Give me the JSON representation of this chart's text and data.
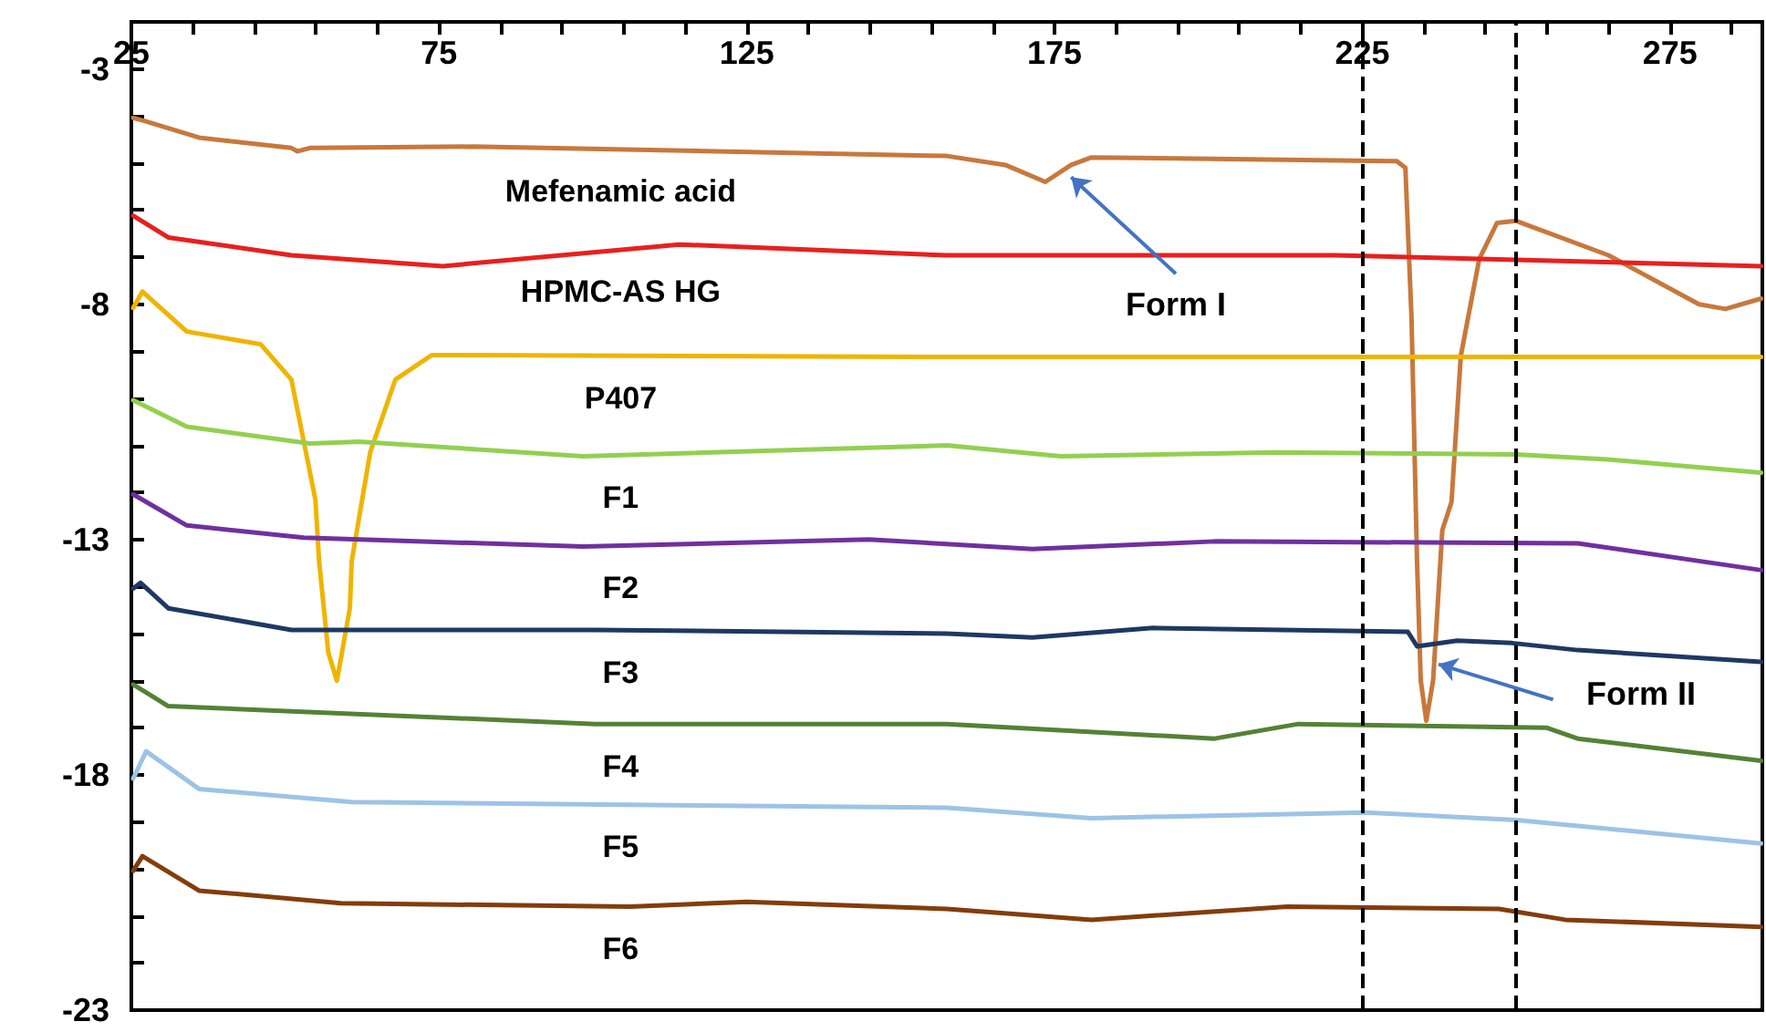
{
  "chart_data": {
    "type": "line",
    "marker": "none",
    "grid": false,
    "xlim": [
      25,
      290
    ],
    "xticks": [
      25,
      {
        "value": 35,
        "label": null
      },
      {
        "value": 45,
        "label": null
      },
      {
        "value": 55,
        "label": null
      },
      {
        "value": 65,
        "label": null
      },
      75,
      {
        "value": 85,
        "label": null
      },
      {
        "value": 95,
        "label": null
      },
      {
        "value": 105,
        "label": null
      },
      {
        "value": 115,
        "label": null
      },
      125,
      {
        "value": 135,
        "label": null
      },
      {
        "value": 145,
        "label": null
      },
      {
        "value": 155,
        "label": null
      },
      {
        "value": 165,
        "label": null
      },
      175,
      {
        "value": 185,
        "label": null
      },
      {
        "value": 195,
        "label": null
      },
      {
        "value": 205,
        "label": null
      },
      {
        "value": 215,
        "label": null
      },
      225,
      {
        "value": 235,
        "label": null
      },
      {
        "value": 245,
        "label": null
      },
      {
        "value": 255,
        "label": null
      },
      {
        "value": 265,
        "label": null
      },
      275,
      {
        "value": 285,
        "label": null
      }
    ],
    "ylim": [
      -23,
      -2
    ],
    "yticks": [
      -23,
      {
        "value": -22,
        "label": null
      },
      {
        "value": -21,
        "label": null
      },
      {
        "value": -20,
        "label": null
      },
      {
        "value": -19,
        "label": null
      },
      -18,
      {
        "value": -17,
        "label": null
      },
      {
        "value": -16,
        "label": null
      },
      {
        "value": -15,
        "label": null
      },
      {
        "value": -14,
        "label": null
      },
      -13,
      {
        "value": -12,
        "label": null
      },
      {
        "value": -11,
        "label": null
      },
      {
        "value": -10,
        "label": null
      },
      {
        "value": -9,
        "label": null
      },
      -8,
      {
        "value": -7,
        "label": null
      },
      {
        "value": -6,
        "label": null
      },
      {
        "value": -5,
        "label": null
      },
      {
        "value": -4,
        "label": null
      },
      -3
    ],
    "ref_lines": [
      {
        "axis": "x",
        "value": 225,
        "color": "#000000",
        "line_style": "dashed"
      },
      {
        "axis": "x",
        "value": 250,
        "color": "#000000",
        "line_style": "dashed"
      }
    ],
    "annotations": [
      {
        "text": "Form I",
        "x": 177.7,
        "y": -5.3
      },
      {
        "text": "Form II",
        "x": 237.4,
        "y": -15.65
      }
    ],
    "series": [
      {
        "name": "Mefenamic acid",
        "color": "#c8783c",
        "x": [
          25.3,
          27,
          36,
          51,
          52,
          54,
          80.6,
          120,
          157.5,
          167,
          173.5,
          177.7,
          181,
          230.6,
          232,
          233,
          233.9,
          234.5,
          235.4,
          236.5,
          238,
          239.5,
          241,
          244,
          246.9,
          250,
          265,
          279.7,
          284,
          289.8
        ],
        "values": [
          -4.04,
          -4.1,
          -4.46,
          -4.68,
          -4.75,
          -4.68,
          -4.65,
          -4.75,
          -4.85,
          -5.04,
          -5.4,
          -5.04,
          -4.88,
          -4.96,
          -5.1,
          -8.3,
          -13.5,
          -16.0,
          -16.85,
          -16.0,
          -12.8,
          -12.2,
          -9.1,
          -7.04,
          -6.27,
          -6.23,
          -6.96,
          -8.0,
          -8.1,
          -7.88
        ]
      },
      {
        "name": "HPMC-AS HG",
        "color": "#e8201e",
        "x": [
          25.3,
          31,
          51,
          75.6,
          114,
          157.5,
          220.6,
          289.8
        ],
        "values": [
          -6.12,
          -6.58,
          -6.96,
          -7.19,
          -6.73,
          -6.96,
          -6.96,
          -7.19
        ]
      },
      {
        "name": "P407",
        "color": "#f0b400",
        "x": [
          25.3,
          26.8,
          34,
          46,
          51,
          54.9,
          55.5,
          57,
          58.4,
          60.5,
          60.8,
          63.8,
          67.9,
          73.8,
          157.5,
          289.8
        ],
        "values": [
          -8.08,
          -7.73,
          -8.58,
          -8.85,
          -9.6,
          -12.15,
          -13.46,
          -15.4,
          -16.0,
          -14.46,
          -13.46,
          -11.15,
          -9.6,
          -9.08,
          -9.12,
          -9.12
        ]
      },
      {
        "name": "F1",
        "color": "#92d050",
        "x": [
          25.3,
          34,
          54,
          62,
          98.4,
          157.5,
          176,
          210.8,
          250,
          265,
          289.8
        ],
        "values": [
          -10.04,
          -10.6,
          -10.96,
          -10.92,
          -11.23,
          -11.0,
          -11.23,
          -11.15,
          -11.19,
          -11.3,
          -11.58
        ]
      },
      {
        "name": "F2",
        "color": "#7030a0",
        "x": [
          25.3,
          34,
          53,
          98.4,
          144.8,
          171.4,
          201,
          260,
          289.8
        ],
        "values": [
          -12.04,
          -12.7,
          -12.96,
          -13.15,
          -13.0,
          -13.2,
          -13.04,
          -13.08,
          -13.65
        ]
      },
      {
        "name": "F3",
        "color": "#1f3864",
        "x": [
          25.3,
          26.5,
          31,
          51,
          100.4,
          157.5,
          171.4,
          191,
          232.4,
          233.9,
          240.4,
          249.3,
          260,
          289.8
        ],
        "values": [
          -14.04,
          -13.92,
          -14.46,
          -14.92,
          -14.92,
          -15.0,
          -15.08,
          -14.88,
          -14.96,
          -15.27,
          -15.15,
          -15.2,
          -15.35,
          -15.6
        ]
      },
      {
        "name": "F4",
        "color": "#548235",
        "x": [
          25.3,
          31,
          100.4,
          157.5,
          201,
          214.6,
          255,
          260,
          289.8
        ],
        "values": [
          -16.08,
          -16.54,
          -16.92,
          -16.92,
          -17.23,
          -16.92,
          -17.0,
          -17.23,
          -17.7
        ]
      },
      {
        "name": "F5",
        "color": "#9dc3e6",
        "x": [
          25.3,
          27.4,
          36,
          60.8,
          157.5,
          181,
          225.6,
          250,
          289.8
        ],
        "values": [
          -18.08,
          -17.5,
          -18.3,
          -18.58,
          -18.7,
          -18.92,
          -18.8,
          -18.96,
          -19.46
        ]
      },
      {
        "name": "F6",
        "color": "#843c0c",
        "x": [
          25.3,
          26.8,
          36,
          59,
          106,
          125,
          157.5,
          181,
          212.8,
          247.2,
          258,
          289.8
        ],
        "values": [
          -20.04,
          -19.73,
          -20.46,
          -20.73,
          -20.8,
          -20.7,
          -20.85,
          -21.08,
          -20.8,
          -20.85,
          -21.08,
          -21.23
        ]
      }
    ]
  }
}
